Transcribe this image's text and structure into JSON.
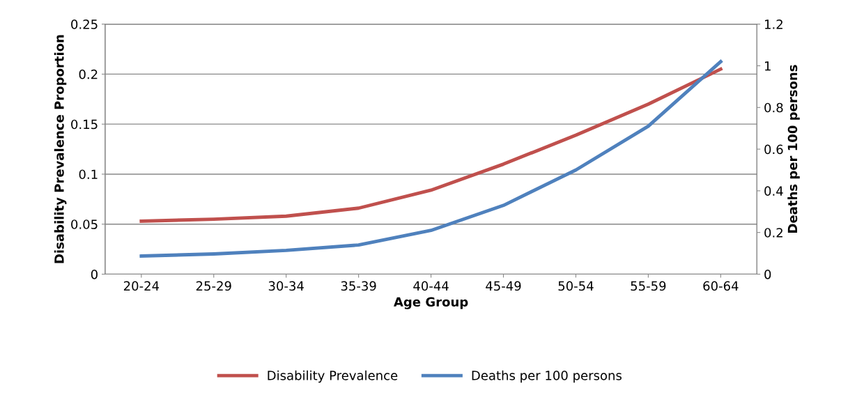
{
  "chart_data": {
    "type": "line",
    "xlabel": "Age Group",
    "ylabel": "Disability Prevalence Proportion",
    "y2label": "Deaths per 100 persons",
    "categories": [
      "20-24",
      "25-29",
      "30-34",
      "35-39",
      "40-44",
      "45-49",
      "50-54",
      "55-59",
      "60-64"
    ],
    "series": [
      {
        "name": "Disability Prevalence",
        "color": "#c0504d",
        "values": [
          0.053,
          0.055,
          0.058,
          0.066,
          0.084,
          0.11,
          0.139,
          0.17,
          0.205
        ]
      },
      {
        "name": "Deaths per 100 persons",
        "color": "#4f81bd",
        "axis": "y2",
        "values": [
          0.087,
          0.097,
          0.114,
          0.14,
          0.21,
          0.33,
          0.5,
          0.71,
          1.02
        ]
      }
    ],
    "ylim": [
      0,
      0.25
    ],
    "yticks": [
      {
        "value": 0,
        "label": "0"
      },
      0.05,
      0.1,
      0.15,
      0.2,
      0.25
    ],
    "y2lim": [
      0,
      1.2
    ],
    "y2ticks": [
      {
        "value": 0,
        "label": "0"
      },
      0.2,
      0.4,
      0.6,
      0.8,
      {
        "value": 1,
        "label": "1"
      },
      1.2
    ],
    "grid": "y",
    "legend": "bottom",
    "marker": "none",
    "line_style": "solid"
  }
}
